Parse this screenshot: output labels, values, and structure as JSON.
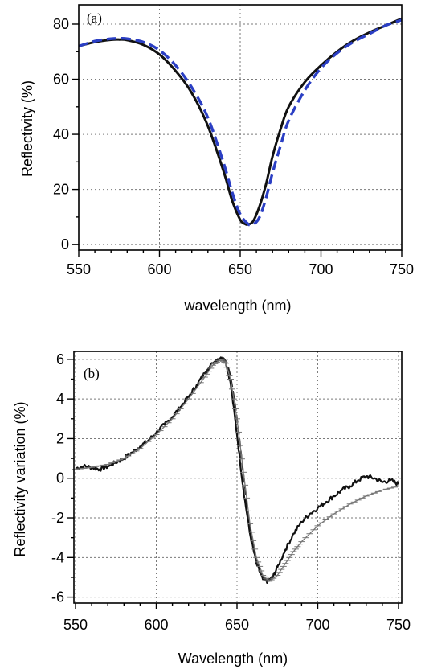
{
  "chart_data": [
    {
      "type": "line",
      "panel_label": "(a)",
      "xlabel": "wavelength (nm)",
      "ylabel": "Reflectivity (%)",
      "xlim": [
        550,
        750
      ],
      "ylim": [
        -2,
        87
      ],
      "xticks": [
        550,
        600,
        650,
        700,
        750
      ],
      "yticks": [
        0,
        20,
        40,
        60,
        80
      ],
      "grid": true,
      "series": [
        {
          "style": "solid",
          "color": "#111111",
          "x": [
            550,
            560,
            570,
            575,
            580,
            590,
            600,
            610,
            620,
            630,
            640,
            645,
            650,
            653,
            655,
            658,
            662,
            666,
            670,
            675,
            680,
            690,
            700,
            710,
            720,
            730,
            740,
            750
          ],
          "y": [
            72,
            73.5,
            74.3,
            74.4,
            74.2,
            72.5,
            69,
            63,
            55,
            43,
            26,
            16,
            9,
            7.5,
            7.3,
            8.5,
            14,
            22,
            32,
            42,
            50,
            59,
            65,
            70,
            74,
            77,
            79.5,
            82
          ]
        },
        {
          "style": "dashed",
          "color": "#2b3fc4",
          "x": [
            550,
            560,
            570,
            575,
            580,
            590,
            600,
            610,
            620,
            630,
            640,
            645,
            650,
            655,
            658,
            662,
            666,
            670,
            675,
            680,
            690,
            700,
            710,
            720,
            730,
            740,
            750
          ],
          "y": [
            72,
            73.8,
            74.7,
            74.8,
            74.7,
            73.5,
            70.5,
            65,
            57,
            46,
            29,
            19,
            11,
            7.4,
            7.2,
            10,
            17,
            26,
            36,
            45,
            56,
            64,
            69.5,
            73.5,
            76.5,
            79.5,
            81.5
          ]
        }
      ]
    },
    {
      "type": "line",
      "panel_label": "(b)",
      "xlabel": "Wavelength (nm)",
      "ylabel": "Reflectivity variation (%)",
      "xlim": [
        549,
        752
      ],
      "ylim": [
        -6.3,
        6.4
      ],
      "xticks": [
        550,
        600,
        650,
        700,
        750
      ],
      "yticks": [
        -6,
        -4,
        -2,
        0,
        2,
        4,
        6
      ],
      "grid": true,
      "series": [
        {
          "style": "noisy-solid",
          "color": "#111111",
          "x": [
            550,
            555,
            560,
            565,
            570,
            575,
            580,
            585,
            590,
            595,
            600,
            605,
            610,
            615,
            620,
            625,
            630,
            635,
            640,
            643,
            646,
            650,
            654,
            658,
            662,
            666,
            669,
            672,
            675,
            680,
            685,
            690,
            695,
            700,
            705,
            710,
            715,
            720,
            725,
            730,
            735,
            740,
            745,
            750
          ],
          "y": [
            0.5,
            0.6,
            0.55,
            0.45,
            0.6,
            0.8,
            1.0,
            1.3,
            1.6,
            1.9,
            2.3,
            2.7,
            3.1,
            3.6,
            4.1,
            4.7,
            5.3,
            5.8,
            6.1,
            5.9,
            4.8,
            2.2,
            -0.6,
            -2.8,
            -4.3,
            -5.1,
            -5.2,
            -5.0,
            -4.5,
            -3.6,
            -2.8,
            -2.2,
            -1.8,
            -1.5,
            -1.2,
            -0.9,
            -0.6,
            -0.4,
            -0.1,
            0.1,
            0.0,
            -0.2,
            -0.1,
            -0.3
          ]
        },
        {
          "style": "dashed",
          "color": "#222222",
          "x": [
            630,
            635,
            640,
            643,
            646,
            650,
            654,
            658,
            662,
            666,
            670
          ],
          "y": [
            5.3,
            5.8,
            6.1,
            5.9,
            5.1,
            3.0,
            0.2,
            -2.4,
            -4.2,
            -5.0,
            -5.2
          ]
        },
        {
          "style": "ticked",
          "color": "#777777",
          "x": [
            550,
            560,
            570,
            580,
            590,
            600,
            610,
            620,
            630,
            635,
            640,
            643,
            646,
            650,
            654,
            658,
            662,
            666,
            670,
            675,
            680,
            685,
            690,
            700,
            710,
            720,
            730,
            740,
            750
          ],
          "y": [
            0.45,
            0.55,
            0.7,
            1.0,
            1.5,
            2.2,
            3.0,
            4.0,
            5.1,
            5.7,
            6.0,
            5.8,
            5.0,
            3.0,
            0.3,
            -2.3,
            -4.0,
            -4.9,
            -5.2,
            -4.9,
            -4.3,
            -3.7,
            -3.2,
            -2.4,
            -1.8,
            -1.3,
            -0.9,
            -0.6,
            -0.4
          ]
        }
      ]
    }
  ]
}
